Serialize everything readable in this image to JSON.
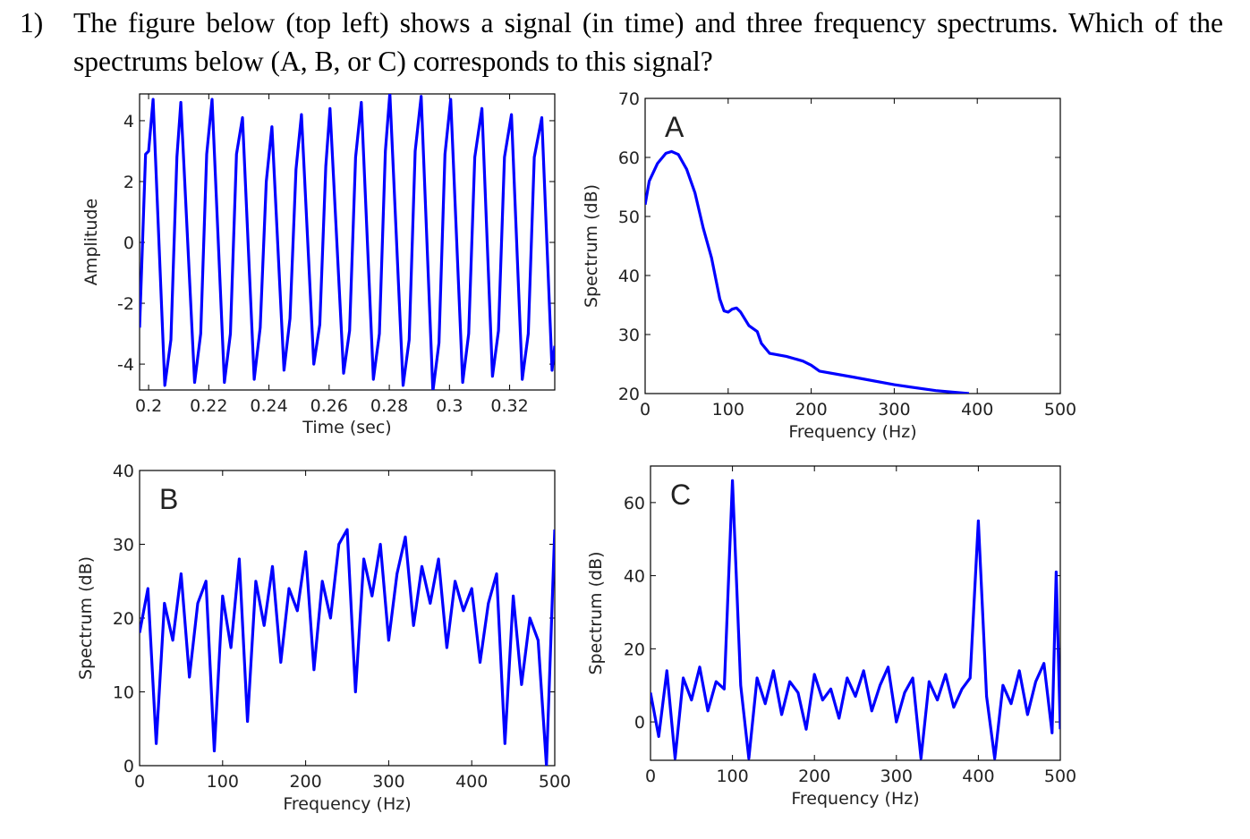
{
  "question": {
    "number": "1)",
    "text": "The figure below (top left) shows a signal (in time) and three frequency spectrums. Which of the spectrums below (A, B, or C) corresponds to this signal?"
  },
  "chart_data": [
    {
      "type": "line",
      "xlabel": "Time (sec)",
      "ylabel": "Amplitude",
      "color": "#0000ff",
      "x": [
        0.197,
        0.199,
        0.2,
        0.2015,
        0.2054,
        0.2074,
        0.2094,
        0.2107,
        0.2153,
        0.2173,
        0.2193,
        0.2211,
        0.2252,
        0.2272,
        0.2292,
        0.2312,
        0.2351,
        0.2371,
        0.2391,
        0.241,
        0.245,
        0.247,
        0.249,
        0.2508,
        0.2549,
        0.2569,
        0.2589,
        0.2603,
        0.2648,
        0.2668,
        0.2688,
        0.2707,
        0.2747,
        0.2767,
        0.2787,
        0.2802,
        0.2846,
        0.2866,
        0.2886,
        0.2906,
        0.2945,
        0.2965,
        0.2985,
        0.3004,
        0.3044,
        0.3064,
        0.3084,
        0.3108,
        0.3143,
        0.3163,
        0.3183,
        0.3206,
        0.3242,
        0.3262,
        0.3282,
        0.3307,
        0.3341,
        0.335
      ],
      "values": [
        -2.8,
        2.9,
        3.0,
        4.7,
        -4.7,
        -3.2,
        2.8,
        4.6,
        -4.6,
        -3.0,
        2.9,
        4.7,
        -4.6,
        -3.0,
        2.9,
        4.1,
        -4.5,
        -2.8,
        2.0,
        3.8,
        -4.2,
        -2.5,
        2.4,
        4.2,
        -4.0,
        -2.7,
        2.5,
        4.4,
        -4.3,
        -2.9,
        2.8,
        4.6,
        -4.5,
        -3.0,
        3.0,
        4.9,
        -4.7,
        -3.2,
        3.0,
        4.8,
        -4.9,
        -3.3,
        2.9,
        4.7,
        -4.6,
        -3.0,
        2.8,
        4.4,
        -4.4,
        -2.9,
        2.8,
        4.2,
        -4.5,
        -3.0,
        2.8,
        4.1,
        -4.2,
        -3.4
      ],
      "xlim": [
        0.197,
        0.335
      ],
      "ylim": [
        -4.85,
        4.88
      ],
      "xticks": [
        0.2,
        0.22,
        0.24,
        0.26,
        0.28,
        0.3,
        0.32
      ],
      "yticks": [
        -4,
        -2,
        0,
        2,
        4
      ]
    },
    {
      "type": "line",
      "xlabel": "Frequency (Hz)",
      "ylabel": "Spectrum (dB)",
      "annotation": "A",
      "color": "#0000ff",
      "x": [
        0,
        5,
        15,
        25,
        32,
        40,
        50,
        60,
        70,
        80,
        90,
        95,
        100,
        105,
        110,
        115,
        125,
        135,
        140,
        150,
        170,
        190,
        200,
        210,
        250,
        300,
        350,
        390
      ],
      "values": [
        52,
        56,
        59,
        60.7,
        61,
        60.5,
        58,
        54,
        48,
        43,
        36,
        34,
        33.8,
        34.3,
        34.5,
        33.8,
        31.5,
        30.5,
        28.5,
        26.8,
        26.3,
        25.5,
        24.8,
        23.8,
        22.8,
        21.5,
        20.5,
        20
      ],
      "xlim": [
        0,
        500
      ],
      "ylim": [
        20,
        70
      ],
      "xticks": [
        0,
        100,
        200,
        300,
        400,
        500
      ],
      "yticks": [
        20,
        30,
        40,
        50,
        60,
        70
      ]
    },
    {
      "type": "line",
      "xlabel": "Frequency (Hz)",
      "ylabel": "Spectrum (dB)",
      "annotation": "B",
      "color": "#0000ff",
      "x": [
        0,
        10,
        20,
        30,
        40,
        50,
        60,
        70,
        80,
        90,
        100,
        110,
        120,
        130,
        140,
        150,
        160,
        170,
        180,
        190,
        200,
        210,
        220,
        230,
        240,
        250,
        260,
        270,
        280,
        290,
        300,
        310,
        320,
        330,
        340,
        350,
        360,
        370,
        380,
        390,
        400,
        410,
        420,
        430,
        440,
        450,
        460,
        470,
        480,
        490,
        500
      ],
      "values": [
        18,
        24,
        3,
        22,
        17,
        26,
        12,
        22,
        25,
        2,
        23,
        16,
        28,
        6,
        25,
        19,
        27,
        14,
        24,
        21,
        29,
        13,
        25,
        20,
        30,
        32,
        10,
        28,
        23,
        30,
        17,
        26,
        31,
        19,
        27,
        22,
        28,
        16,
        25,
        21,
        24,
        14,
        22,
        26,
        3,
        23,
        11,
        20,
        17,
        0,
        32
      ],
      "xlim": [
        0,
        500
      ],
      "ylim": [
        0,
        40
      ],
      "xticks": [
        0,
        100,
        200,
        300,
        400,
        500
      ],
      "yticks": [
        0,
        10,
        20,
        30,
        40
      ]
    },
    {
      "type": "line",
      "xlabel": "Frequency (Hz)",
      "ylabel": "Spectrum (dB)",
      "annotation": "C",
      "color": "#0000ff",
      "x": [
        0,
        10,
        20,
        30,
        40,
        50,
        60,
        70,
        80,
        90,
        100,
        110,
        120,
        130,
        140,
        150,
        160,
        170,
        180,
        190,
        200,
        210,
        220,
        230,
        240,
        250,
        260,
        270,
        280,
        290,
        300,
        310,
        320,
        330,
        340,
        350,
        360,
        370,
        380,
        390,
        400,
        410,
        420,
        430,
        440,
        450,
        460,
        470,
        480,
        490,
        495,
        500
      ],
      "values": [
        8,
        -4,
        14,
        -10,
        12,
        6,
        15,
        3,
        11,
        9,
        66,
        10,
        -10,
        12,
        5,
        14,
        2,
        11,
        8,
        -2,
        13,
        6,
        9,
        1,
        12,
        7,
        14,
        3,
        10,
        15,
        0,
        8,
        12,
        -10,
        11,
        6,
        13,
        4,
        9,
        12,
        55,
        7,
        -10,
        10,
        5,
        14,
        2,
        11,
        16,
        -3,
        41,
        -2
      ],
      "xlim": [
        0,
        500
      ],
      "ylim": [
        -10.5,
        70
      ],
      "xticks": [
        0,
        100,
        200,
        300,
        400,
        500
      ],
      "yticks": [
        0,
        20,
        40,
        60
      ]
    }
  ]
}
